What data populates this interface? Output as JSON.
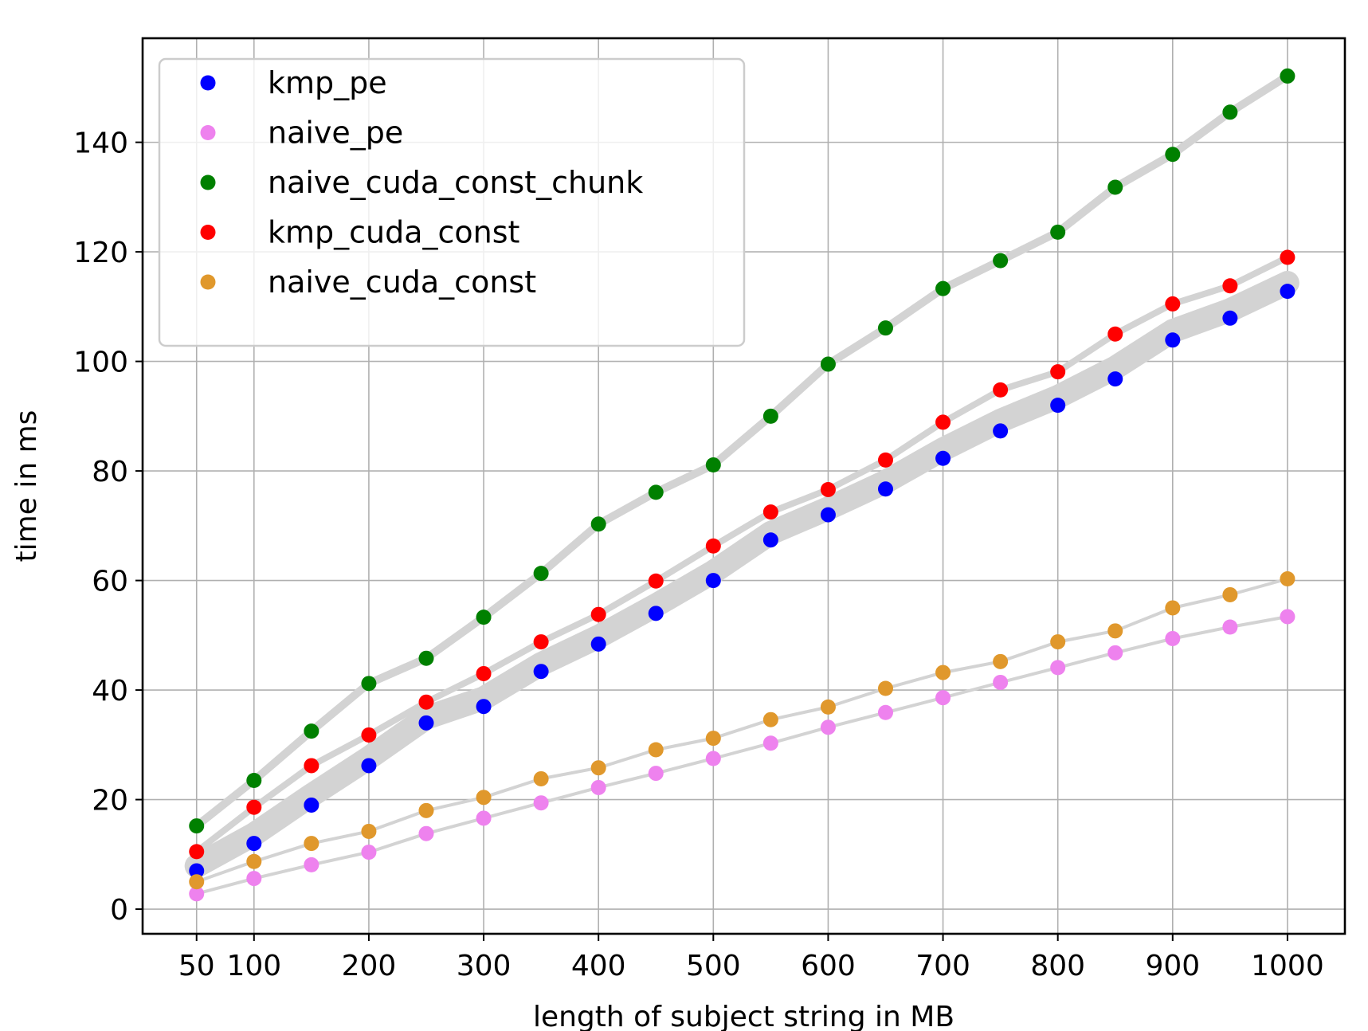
{
  "chart_data": {
    "type": "scatter",
    "title": "",
    "xlabel": "length of subject string in MB",
    "ylabel": "time in ms",
    "xlim": [
      3,
      1050
    ],
    "ylim": [
      -4.5,
      159
    ],
    "xticks": [
      50,
      100,
      200,
      300,
      400,
      500,
      600,
      700,
      800,
      900,
      1000
    ],
    "yticks": [
      0,
      20,
      40,
      60,
      80,
      100,
      120,
      140
    ],
    "grid": true,
    "legend_position": "top-left",
    "x": [
      50,
      100,
      150,
      200,
      250,
      300,
      350,
      400,
      450,
      500,
      550,
      600,
      650,
      700,
      750,
      800,
      850,
      900,
      950,
      1000
    ],
    "series": [
      {
        "name": "kmp_pe",
        "color": "#0000ff",
        "values": [
          7.0,
          12.0,
          19.0,
          26.2,
          34.0,
          37.0,
          43.4,
          48.4,
          54.0,
          60.0,
          67.4,
          72.0,
          76.7,
          82.3,
          87.3,
          92.0,
          96.8,
          103.9,
          107.9,
          112.8
        ]
      },
      {
        "name": "naive_pe",
        "color": "#ee82ee",
        "values": [
          2.8,
          5.6,
          8.1,
          10.4,
          13.8,
          16.6,
          19.4,
          22.2,
          24.8,
          27.5,
          30.3,
          33.2,
          35.9,
          38.6,
          41.4,
          44.1,
          46.8,
          49.4,
          51.5,
          53.4
        ]
      },
      {
        "name": "naive_cuda_const_chunk",
        "color": "#008000",
        "values": [
          15.2,
          23.5,
          32.5,
          41.2,
          45.8,
          53.3,
          61.3,
          70.3,
          76.1,
          81.1,
          90.0,
          99.5,
          106.1,
          113.3,
          118.4,
          123.6,
          131.8,
          137.8,
          145.5,
          152.1
        ]
      },
      {
        "name": "kmp_cuda_const",
        "color": "#ff0000",
        "values": [
          10.5,
          18.6,
          26.2,
          31.8,
          37.8,
          43.0,
          48.8,
          53.8,
          59.9,
          66.3,
          72.5,
          76.6,
          82.0,
          88.9,
          94.8,
          98.1,
          105.0,
          110.5,
          113.8,
          119.0
        ]
      },
      {
        "name": "naive_cuda_const",
        "color": "#e0982c",
        "values": [
          5.0,
          8.7,
          12.0,
          14.2,
          18.0,
          20.4,
          23.8,
          25.8,
          29.1,
          31.2,
          34.6,
          36.9,
          40.3,
          43.2,
          45.2,
          48.8,
          50.8,
          55.0,
          57.4,
          60.3
        ]
      }
    ]
  }
}
